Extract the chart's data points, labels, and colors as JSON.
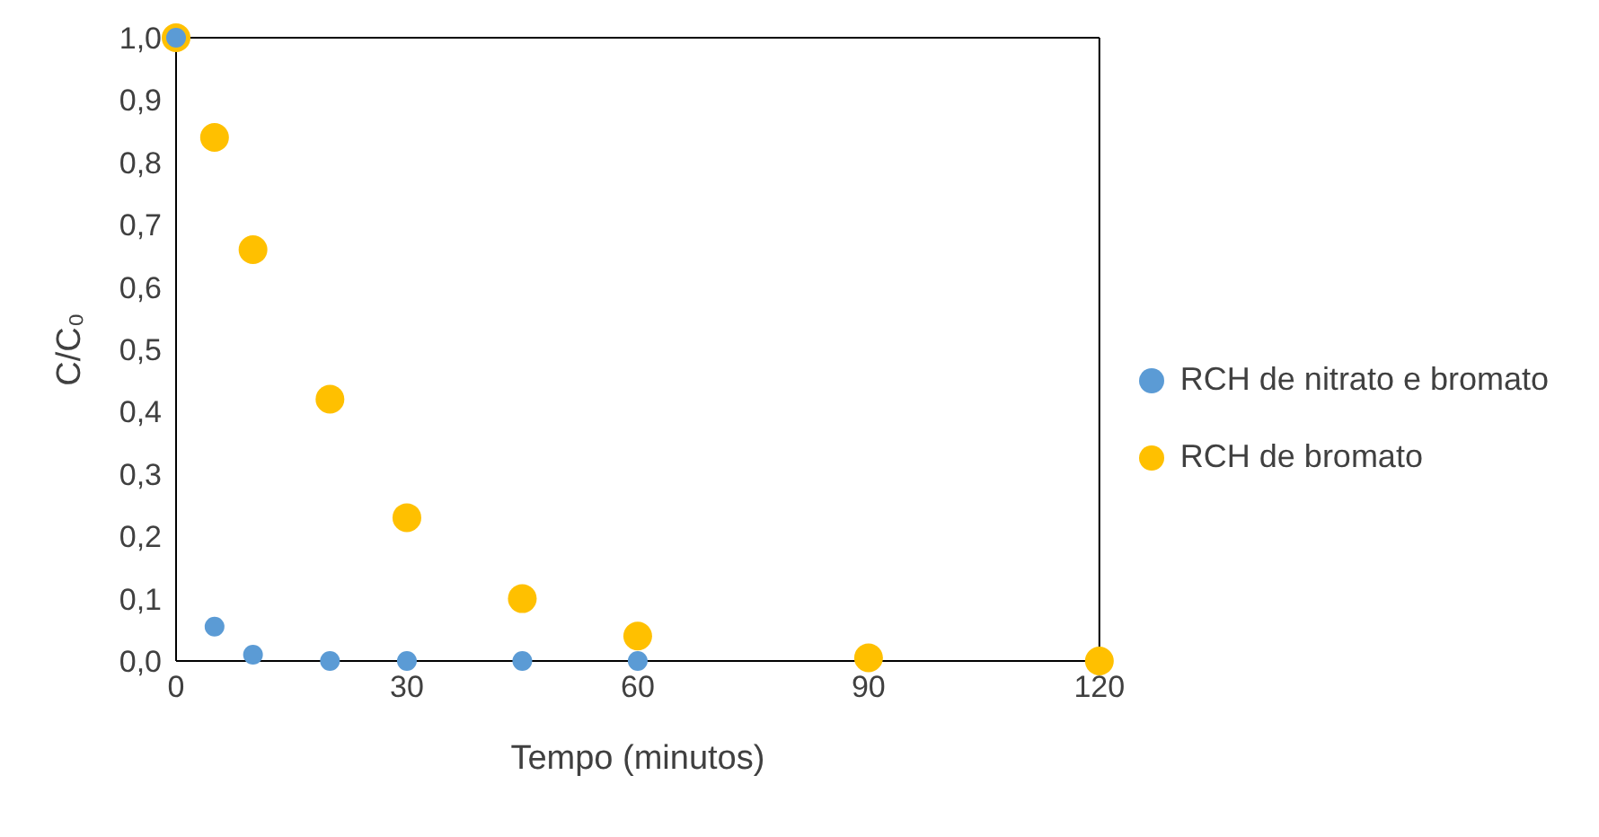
{
  "chart_data": {
    "type": "scatter",
    "xlabel": "Tempo (minutos)",
    "ylabel": "C/C₀",
    "x": [
      0,
      5,
      10,
      20,
      30,
      45,
      60,
      90,
      120
    ],
    "series": [
      {
        "name": "RCH de nitrato e bromato",
        "color": "#5b9bd5",
        "values": [
          1.0,
          0.055,
          0.01,
          0,
          0,
          0,
          0,
          null,
          null
        ]
      },
      {
        "name": "RCH de bromato",
        "color": "#ffc000",
        "values": [
          1.0,
          0.84,
          0.66,
          0.42,
          0.23,
          0.1,
          0.04,
          0.005,
          0
        ]
      }
    ],
    "xlim": [
      0,
      120
    ],
    "xticks": [
      0,
      30,
      60,
      90,
      120
    ],
    "ylim": [
      0,
      1
    ],
    "yticks": [
      {
        "value": 0,
        "label": "0,0"
      },
      {
        "value": 0.1,
        "label": "0,1"
      },
      {
        "value": 0.2,
        "label": "0,2"
      },
      {
        "value": 0.3,
        "label": "0,3"
      },
      {
        "value": 0.4,
        "label": "0,4"
      },
      {
        "value": 0.5,
        "label": "0,5"
      },
      {
        "value": 0.6,
        "label": "0,6"
      },
      {
        "value": 0.7,
        "label": "0,7"
      },
      {
        "value": 0.8,
        "label": "0,8"
      },
      {
        "value": 0.9,
        "label": "0,9"
      },
      {
        "value": 1,
        "label": "1,0"
      }
    ],
    "legend": "right",
    "marker": "circle",
    "grid": false
  }
}
